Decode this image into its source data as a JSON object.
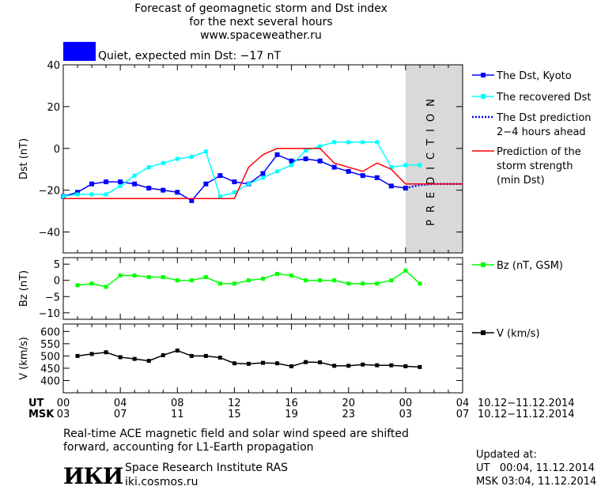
{
  "header": {
    "title_line1": "Forecast of geomagnetic storm and Dst index",
    "title_line2": "for the next several hours",
    "title_line3": "www.spaceweather.ru",
    "status_text": "Quiet, expected min Dst: −17 nT",
    "status_color": "#0000ff"
  },
  "footer": {
    "note_line1": "Real-time ACE magnetic field and solar wind speed are shifted",
    "note_line2": "forward, accounting for L1-Earth propagation",
    "institute": "Space Research Institute RAS",
    "website": "iki.cosmos.ru",
    "logo_text": "ИКИ",
    "updated_label": "Updated at:",
    "updated_ut": "UT   00:04, 11.12.2014",
    "updated_msk": "MSK 03:04, 11.12.2014"
  },
  "time_axis": {
    "ut_label": "UT",
    "msk_label": "MSK",
    "ut_ticks": [
      "00",
      "04",
      "08",
      "12",
      "16",
      "20",
      "00",
      "04"
    ],
    "msk_ticks": [
      "03",
      "07",
      "11",
      "15",
      "19",
      "23",
      "03",
      "07"
    ],
    "ut_range": "10.12−11.12.2014",
    "msk_range": "10.12−11.12.2014",
    "hours_range": [
      0,
      28
    ],
    "prediction_start_hour": 24,
    "prediction_label": "PREDICTION"
  },
  "chart_data": [
    {
      "type": "line",
      "ylabel": "Dst (nT)",
      "ylim": [
        -50,
        40
      ],
      "yticks": [
        40,
        20,
        0,
        -20,
        -40
      ],
      "series": [
        {
          "name": "The Dst, Kyoto",
          "color": "#0000ff",
          "marker": "square",
          "x": [
            0,
            1,
            2,
            3,
            4,
            5,
            6,
            7,
            8,
            9,
            10,
            11,
            12,
            13,
            14,
            15,
            16,
            17,
            18,
            19,
            20,
            21,
            22,
            23,
            24
          ],
          "y": [
            -23,
            -21,
            -17,
            -16,
            -16,
            -17,
            -19,
            -20,
            -21,
            -25,
            -17,
            -13,
            -16,
            -17,
            -12,
            -3,
            -6,
            -5,
            -6,
            -9,
            -11,
            -13,
            -14,
            -18,
            -19
          ]
        },
        {
          "name": "The recovered Dst",
          "color": "#00ffff",
          "marker": "square-small",
          "x": [
            0,
            1,
            2,
            3,
            4,
            5,
            6,
            7,
            8,
            9,
            10,
            11,
            12,
            13,
            14,
            15,
            16,
            17,
            18,
            19,
            20,
            21,
            22,
            23,
            24,
            25
          ],
          "y": [
            -23,
            -22,
            -22,
            -22,
            -18,
            -13,
            -9,
            -7,
            -5,
            -4,
            -1.5,
            -23,
            -21,
            -17,
            -14,
            -11,
            -8,
            -1,
            1,
            3,
            3,
            3,
            3,
            -9,
            -8,
            -8
          ]
        },
        {
          "name": "The Dst prediction\n2−4 hours ahead",
          "color": "#0000ff",
          "style": "dotted",
          "x": [
            24,
            25,
            26,
            27,
            28
          ],
          "y": [
            -19,
            -17.5,
            -17,
            -17,
            -17
          ]
        },
        {
          "name": "Prediction of the\nstorm strength\n(min Dst)",
          "color": "#ff0000",
          "style": "solid",
          "x": [
            0,
            8,
            12,
            13,
            14,
            15,
            16,
            17,
            18,
            19,
            20,
            21,
            22,
            23,
            24,
            28
          ],
          "y": [
            -24,
            -24,
            -24,
            -9,
            -3,
            0,
            0,
            0,
            0,
            -7,
            -9,
            -11,
            -7,
            -10,
            -17,
            -17
          ]
        }
      ]
    },
    {
      "type": "line",
      "ylabel": "Bz (nT)",
      "ylim": [
        -12,
        7
      ],
      "yticks": [
        5,
        0,
        -5,
        -10
      ],
      "series": [
        {
          "name": "Bz (nT, GSM)",
          "color": "#00ff00",
          "marker": "square-small",
          "x": [
            1,
            2,
            3,
            4,
            5,
            6,
            7,
            8,
            9,
            10,
            11,
            12,
            13,
            14,
            15,
            16,
            17,
            18,
            19,
            20,
            21,
            22,
            23,
            24,
            25
          ],
          "y": [
            -1.5,
            -1,
            -2,
            1.5,
            1.5,
            1,
            1,
            0,
            0,
            1,
            -1,
            -1,
            0,
            0.5,
            2,
            1.5,
            0,
            0,
            0,
            -1,
            -1,
            -1,
            0,
            3,
            -1
          ]
        }
      ]
    },
    {
      "type": "line",
      "ylabel": "V (km/s)",
      "ylim": [
        350,
        630
      ],
      "yticks": [
        600,
        550,
        500,
        450,
        400
      ],
      "series": [
        {
          "name": "V (km/s)",
          "color": "#000000",
          "marker": "square-small",
          "x": [
            1,
            2,
            3,
            4,
            5,
            6,
            7,
            8,
            9,
            10,
            11,
            12,
            13,
            14,
            15,
            16,
            17,
            18,
            19,
            20,
            21,
            22,
            23,
            24,
            25
          ],
          "y": [
            500,
            508,
            515,
            495,
            488,
            480,
            503,
            522,
            500,
            500,
            493,
            470,
            468,
            472,
            470,
            458,
            475,
            474,
            460,
            460,
            465,
            462,
            462,
            458,
            455
          ]
        }
      ]
    }
  ]
}
